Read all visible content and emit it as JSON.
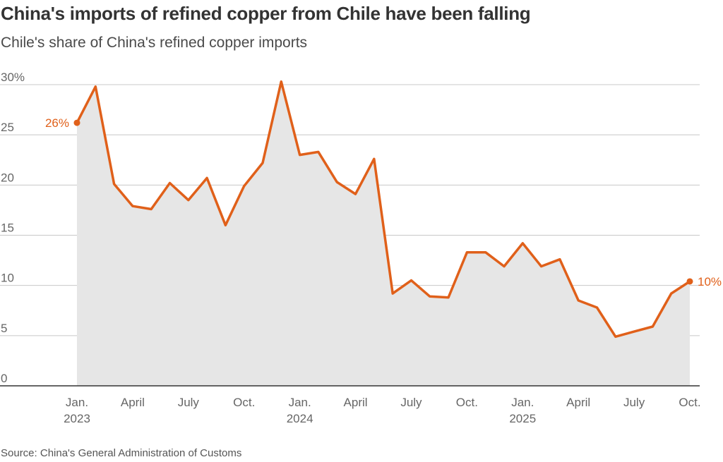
{
  "colors": {
    "line": "#E0601A",
    "area": "#E6E6E6",
    "grid": "#C8C8C8",
    "axis": "#333333",
    "tick_text": "#666666"
  },
  "chart_data": {
    "type": "area",
    "title": "China's imports of refined copper from Chile have been falling",
    "subtitle": "Chile's share of China's refined copper imports",
    "source": "Source: China's General Administration of Customs",
    "ylim": [
      0,
      30
    ],
    "yticks": [
      {
        "value": 0,
        "label": "0"
      },
      {
        "value": 5,
        "label": "5"
      },
      {
        "value": 10,
        "label": "10"
      },
      {
        "value": 15,
        "label": "15"
      },
      {
        "value": 20,
        "label": "20"
      },
      {
        "value": 25,
        "label": "25"
      },
      {
        "value": 30,
        "label": "30%"
      }
    ],
    "grid": true,
    "xticks": [
      {
        "index": 0,
        "label": "Jan.",
        "year": "2023"
      },
      {
        "index": 3,
        "label": "April"
      },
      {
        "index": 6,
        "label": "July"
      },
      {
        "index": 9,
        "label": "Oct."
      },
      {
        "index": 12,
        "label": "Jan.",
        "year": "2024"
      },
      {
        "index": 15,
        "label": "April"
      },
      {
        "index": 18,
        "label": "July"
      },
      {
        "index": 21,
        "label": "Oct."
      },
      {
        "index": 24,
        "label": "Jan.",
        "year": "2025"
      },
      {
        "index": 27,
        "label": "April"
      },
      {
        "index": 30,
        "label": "July"
      },
      {
        "index": 33,
        "label": "Oct."
      }
    ],
    "x": [
      "2023-01",
      "2023-02",
      "2023-03",
      "2023-04",
      "2023-05",
      "2023-06",
      "2023-07",
      "2023-08",
      "2023-09",
      "2023-10",
      "2023-11",
      "2023-12",
      "2024-01",
      "2024-02",
      "2024-03",
      "2024-04",
      "2024-05",
      "2024-06",
      "2024-07",
      "2024-08",
      "2024-09",
      "2024-10",
      "2024-11",
      "2024-12",
      "2025-01",
      "2025-02",
      "2025-03",
      "2025-04",
      "2025-05",
      "2025-06",
      "2025-07",
      "2025-08",
      "2025-09",
      "2025-10"
    ],
    "values": [
      26.2,
      29.8,
      20.1,
      17.9,
      17.6,
      20.2,
      18.5,
      20.7,
      16.0,
      19.9,
      22.2,
      30.3,
      23.0,
      23.3,
      20.3,
      19.1,
      22.6,
      9.2,
      10.5,
      8.9,
      8.8,
      13.3,
      13.3,
      11.9,
      14.2,
      11.9,
      12.6,
      8.5,
      7.8,
      4.9,
      5.4,
      5.9,
      9.2,
      10.4
    ],
    "start_label": "26%",
    "end_label": "10%"
  }
}
